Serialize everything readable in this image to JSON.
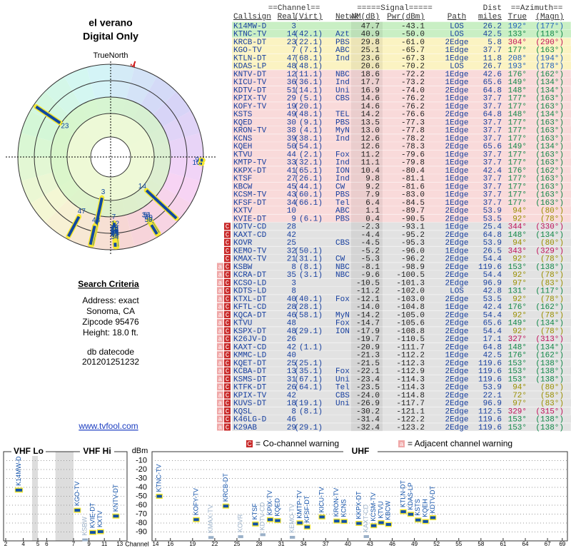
{
  "header": {
    "title": "el verano",
    "subtitle": "Digital Only"
  },
  "polar": {
    "true_north": "TrueNorth",
    "magnetic_north": "N"
  },
  "search": {
    "title": "Search Criteria",
    "lines": [
      "Address: exact",
      "Sonoma, CA",
      "Zipcode 95476",
      "Height: 18.0 ft."
    ]
  },
  "datecode": {
    "label": "db datecode",
    "value": "201201251232"
  },
  "link": "www.tvfool.com",
  "table": {
    "group_headers": [
      "==Channel==",
      "=====Signal=====",
      "Dist",
      "==Azimuth=="
    ],
    "columns": [
      "Callsign",
      "Real",
      "(Virt)",
      "Netwk",
      "NM(dB)",
      "Pwr(dBm)",
      "Path",
      "miles",
      "True",
      "(Magn)"
    ],
    "rows": [
      {
        "callsign": "K14MW-D",
        "real": 3,
        "nm": "47.7",
        "pwr": "-43.1",
        "path": "LOS",
        "dist": "26.2",
        "true": "192°",
        "magn": "(177°)"
      },
      {
        "callsign": "KTNC-TV",
        "real": 14,
        "virt": "(42.1)",
        "netwk": "Azt",
        "nm": "40.9",
        "pwr": "-50.0",
        "path": "LOS",
        "dist": "42.5",
        "true": "133°",
        "magn": "(118°)"
      },
      {
        "callsign": "KRCB-DT",
        "real": 23,
        "virt": "(22.1)",
        "netwk": "PBS",
        "nm": "29.8",
        "pwr": "-61.0",
        "path": "2Edge",
        "dist": "5.8",
        "true": "304°",
        "magn": "(290°)"
      },
      {
        "callsign": "KGO-TV",
        "real": 7,
        "virt": "(7.1)",
        "netwk": "ABC",
        "nm": "25.1",
        "pwr": "-65.7",
        "path": "1Edge",
        "dist": "37.7",
        "true": "177°",
        "magn": "(163°)"
      },
      {
        "callsign": "KTLN-DT",
        "real": 47,
        "virt": "(68.1)",
        "netwk": "Ind",
        "nm": "23.6",
        "pwr": "-67.3",
        "path": "1Edge",
        "dist": "11.8",
        "true": "208°",
        "magn": "(194°)"
      },
      {
        "callsign": "KDAS-LP",
        "real": 48,
        "virt": "(48.1)",
        "nm": "20.6",
        "pwr": "-70.2",
        "path": "LOS",
        "dist": "26.7",
        "true": "193°",
        "magn": "(178°)"
      },
      {
        "callsign": "KNTV-DT",
        "real": 12,
        "virt": "(11.1)",
        "netwk": "NBC",
        "nm": "18.6",
        "pwr": "-72.2",
        "path": "1Edge",
        "dist": "42.6",
        "true": "176°",
        "magn": "(162°)"
      },
      {
        "callsign": "KICU-TV",
        "real": 36,
        "virt": "(36.1)",
        "netwk": "Ind",
        "nm": "17.7",
        "pwr": "-73.2",
        "path": "1Edge",
        "dist": "65.6",
        "true": "149°",
        "magn": "(134°)"
      },
      {
        "callsign": "KDTV-DT",
        "real": 51,
        "virt": "(14.1)",
        "netwk": "Uni",
        "nm": "16.9",
        "pwr": "-74.0",
        "path": "2Edge",
        "dist": "64.8",
        "true": "148°",
        "magn": "(134°)"
      },
      {
        "callsign": "KPIX-TV",
        "real": 29,
        "virt": "(5.1)",
        "netwk": "CBS",
        "nm": "14.6",
        "pwr": "-76.2",
        "path": "1Edge",
        "dist": "37.7",
        "true": "177°",
        "magn": "(163°)"
      },
      {
        "callsign": "KOFY-TV",
        "real": 19,
        "virt": "(20.1)",
        "nm": "14.6",
        "pwr": "-76.2",
        "path": "1Edge",
        "dist": "37.7",
        "true": "177°",
        "magn": "(163°)"
      },
      {
        "callsign": "KSTS",
        "real": 49,
        "virt": "(48.1)",
        "netwk": "TEL",
        "nm": "14.2",
        "pwr": "-76.6",
        "path": "2Edge",
        "dist": "64.8",
        "true": "148°",
        "magn": "(134°)"
      },
      {
        "callsign": "KQED",
        "real": 30,
        "virt": "(9.1)",
        "netwk": "PBS",
        "nm": "13.5",
        "pwr": "-77.3",
        "path": "1Edge",
        "dist": "37.7",
        "true": "177°",
        "magn": "(163°)"
      },
      {
        "callsign": "KRON-TV",
        "real": 38,
        "virt": "(4.1)",
        "netwk": "MyN",
        "nm": "13.0",
        "pwr": "-77.8",
        "path": "1Edge",
        "dist": "37.7",
        "true": "177°",
        "magn": "(163°)"
      },
      {
        "callsign": "KCNS",
        "real": 39,
        "virt": "(38.1)",
        "netwk": "Ind",
        "nm": "12.6",
        "pwr": "-78.2",
        "path": "1Edge",
        "dist": "37.7",
        "true": "177°",
        "magn": "(163°)"
      },
      {
        "callsign": "KQEH",
        "real": 50,
        "virt": "(54.1)",
        "nm": "12.6",
        "pwr": "-78.3",
        "path": "2Edge",
        "dist": "65.6",
        "true": "149°",
        "magn": "(134°)"
      },
      {
        "callsign": "KTVU",
        "real": 44,
        "virt": "(2.1)",
        "netwk": "Fox",
        "nm": "11.2",
        "pwr": "-79.6",
        "path": "1Edge",
        "dist": "37.7",
        "true": "177°",
        "magn": "(163°)"
      },
      {
        "callsign": "KMTP-TV",
        "real": 33,
        "virt": "(32.1)",
        "netwk": "Ind",
        "nm": "11.1",
        "pwr": "-79.8",
        "path": "1Edge",
        "dist": "37.7",
        "true": "177°",
        "magn": "(163°)"
      },
      {
        "callsign": "KKPX-DT",
        "real": 41,
        "virt": "(65.1)",
        "netwk": "ION",
        "nm": "10.4",
        "pwr": "-80.4",
        "path": "1Edge",
        "dist": "42.4",
        "true": "176°",
        "magn": "(162°)"
      },
      {
        "callsign": "KTSF",
        "real": 27,
        "virt": "(26.1)",
        "netwk": "Ind",
        "nm": "9.8",
        "pwr": "-81.1",
        "path": "1Edge",
        "dist": "37.7",
        "true": "177°",
        "magn": "(163°)"
      },
      {
        "callsign": "KBCW",
        "real": 45,
        "virt": "(44.1)",
        "netwk": "CW",
        "nm": "9.2",
        "pwr": "-81.6",
        "path": "1Edge",
        "dist": "37.7",
        "true": "177°",
        "magn": "(163°)"
      },
      {
        "callsign": "KCSM-TV",
        "real": 43,
        "virt": "(60.1)",
        "netwk": "PBS",
        "nm": "7.9",
        "pwr": "-83.0",
        "path": "1Edge",
        "dist": "37.7",
        "true": "177°",
        "magn": "(163°)"
      },
      {
        "callsign": "KFSF-DT",
        "real": 34,
        "virt": "(66.1)",
        "netwk": "Tel",
        "nm": "6.4",
        "pwr": "-84.5",
        "path": "1Edge",
        "dist": "37.7",
        "true": "177°",
        "magn": "(163°)"
      },
      {
        "callsign": "KXTV",
        "real": 10,
        "netwk": "ABC",
        "nm": "1.1",
        "pwr": "-89.7",
        "path": "2Edge",
        "dist": "53.9",
        "true": "94°",
        "magn": "(80°)"
      },
      {
        "callsign": "KVIE-DT",
        "real": 9,
        "virt": "(6.1)",
        "netwk": "PBS",
        "nm": "0.4",
        "pwr": "-90.5",
        "path": "2Edge",
        "dist": "53.5",
        "true": "92°",
        "magn": "(78°)"
      },
      {
        "callsign": "KDTV-CD",
        "real": 28,
        "nm": "-2.3",
        "pwr": "-93.1",
        "path": "1Edge",
        "dist": "25.4",
        "true": "344°",
        "magn": "(330°)",
        "warn": [
          "C"
        ]
      },
      {
        "callsign": "KAXT-CD",
        "real": 42,
        "nm": "-4.4",
        "pwr": "-95.2",
        "path": "2Edge",
        "dist": "64.8",
        "true": "148°",
        "magn": "(134°)",
        "warn": [
          "C"
        ]
      },
      {
        "callsign": "KOVR",
        "real": 25,
        "netwk": "CBS",
        "nm": "-4.5",
        "pwr": "-95.3",
        "path": "2Edge",
        "dist": "53.9",
        "true": "94°",
        "magn": "(80°)",
        "warn": [
          "C"
        ]
      },
      {
        "callsign": "KEMO-TV",
        "real": 32,
        "virt": "(50.1)",
        "nm": "-5.2",
        "pwr": "-96.0",
        "path": "1Edge",
        "dist": "26.5",
        "true": "343°",
        "magn": "(329°)",
        "warn": [
          "C"
        ]
      },
      {
        "callsign": "KMAX-TV",
        "real": 21,
        "virt": "(31.1)",
        "netwk": "CW",
        "nm": "-5.3",
        "pwr": "-96.2",
        "path": "2Edge",
        "dist": "54.4",
        "true": "92°",
        "magn": "(78°)",
        "warn": [
          "C"
        ]
      },
      {
        "callsign": "KSBW",
        "real": 8,
        "virt": "(8.1)",
        "netwk": "NBC",
        "nm": "-8.1",
        "pwr": "-98.9",
        "path": "2Edge",
        "dist": "119.6",
        "true": "153°",
        "magn": "(138°)",
        "warn": [
          "a",
          "C"
        ]
      },
      {
        "callsign": "KCRA-DT",
        "real": 35,
        "virt": "(3.1)",
        "netwk": "NBC",
        "nm": "-9.6",
        "pwr": "-100.5",
        "path": "2Edge",
        "dist": "54.4",
        "true": "92°",
        "magn": "(78°)",
        "warn": [
          "a",
          "C"
        ]
      },
      {
        "callsign": "KCSO-LD",
        "real": 3,
        "nm": "-10.5",
        "pwr": "-101.3",
        "path": "2Edge",
        "dist": "96.9",
        "true": "97°",
        "magn": "(83°)",
        "warn": [
          "a",
          "C"
        ]
      },
      {
        "callsign": "KDTS-LD",
        "real": 8,
        "nm": "-11.2",
        "pwr": "-102.0",
        "path": "LOS",
        "dist": "42.8",
        "true": "131°",
        "magn": "(117°)",
        "warn": [
          "a",
          "C"
        ]
      },
      {
        "callsign": "KTXL-DT",
        "real": 40,
        "virt": "(40.1)",
        "netwk": "Fox",
        "nm": "-12.1",
        "pwr": "-103.0",
        "path": "2Edge",
        "dist": "53.5",
        "true": "92°",
        "magn": "(78°)",
        "warn": [
          "a",
          "C"
        ]
      },
      {
        "callsign": "KFTL-CD",
        "real": 28,
        "virt": "(28.1)",
        "nm": "-14.0",
        "pwr": "-104.8",
        "path": "1Edge",
        "dist": "42.4",
        "true": "176°",
        "magn": "(162°)",
        "warn": [
          "a",
          "C"
        ]
      },
      {
        "callsign": "KQCA-DT",
        "real": 46,
        "virt": "(58.1)",
        "netwk": "MyN",
        "nm": "-14.2",
        "pwr": "-105.0",
        "path": "2Edge",
        "dist": "54.4",
        "true": "92°",
        "magn": "(78°)",
        "warn": [
          "a",
          "C"
        ]
      },
      {
        "callsign": "KTVU",
        "real": 48,
        "netwk": "Fox",
        "nm": "-14.7",
        "pwr": "-105.6",
        "path": "2Edge",
        "dist": "65.6",
        "true": "149°",
        "magn": "(134°)",
        "warn": [
          "a",
          "C"
        ]
      },
      {
        "callsign": "KSPX-DT",
        "real": 48,
        "virt": "(29.1)",
        "netwk": "ION",
        "nm": "-17.9",
        "pwr": "-108.8",
        "path": "2Edge",
        "dist": "54.4",
        "true": "92°",
        "magn": "(78°)",
        "warn": [
          "a",
          "C"
        ]
      },
      {
        "callsign": "K26JV-D",
        "real": 26,
        "nm": "-19.7",
        "pwr": "-110.5",
        "path": "2Edge",
        "dist": "17.1",
        "true": "327°",
        "magn": "(313°)",
        "warn": [
          "a",
          "C"
        ]
      },
      {
        "callsign": "KAXT-CD",
        "real": 42,
        "virt": "(1.1)",
        "nm": "-20.9",
        "pwr": "-111.7",
        "path": "2Edge",
        "dist": "64.8",
        "true": "148°",
        "magn": "(134°)",
        "warn": [
          "a",
          "C"
        ]
      },
      {
        "callsign": "KMMC-LD",
        "real": 40,
        "nm": "-21.3",
        "pwr": "-112.2",
        "path": "1Edge",
        "dist": "42.5",
        "true": "176°",
        "magn": "(162°)",
        "warn": [
          "a",
          "C"
        ]
      },
      {
        "callsign": "KQET-DT",
        "real": 25,
        "virt": "(25.1)",
        "nm": "-21.5",
        "pwr": "-112.3",
        "path": "2Edge",
        "dist": "119.6",
        "true": "153°",
        "magn": "(138°)",
        "warn": [
          "a",
          "C"
        ]
      },
      {
        "callsign": "KCBA-DT",
        "real": 13,
        "virt": "(35.1)",
        "netwk": "Fox",
        "nm": "-22.1",
        "pwr": "-112.9",
        "path": "2Edge",
        "dist": "119.6",
        "true": "153°",
        "magn": "(138°)",
        "warn": [
          "a",
          "C"
        ]
      },
      {
        "callsign": "KSMS-DT",
        "real": 31,
        "virt": "(67.1)",
        "netwk": "Uni",
        "nm": "-23.4",
        "pwr": "-114.3",
        "path": "2Edge",
        "dist": "119.6",
        "true": "153°",
        "magn": "(138°)",
        "warn": [
          "a",
          "C"
        ]
      },
      {
        "callsign": "KTFK-DT",
        "real": 26,
        "virt": "(64.1)",
        "netwk": "Tel",
        "nm": "-23.5",
        "pwr": "-114.3",
        "path": "2Edge",
        "dist": "53.9",
        "true": "94°",
        "magn": "(80°)",
        "warn": [
          "a",
          "C"
        ]
      },
      {
        "callsign": "KPIX-TV",
        "real": 42,
        "netwk": "CBS",
        "nm": "-24.0",
        "pwr": "-114.8",
        "path": "2Edge",
        "dist": "22.1",
        "true": "72°",
        "magn": "(58°)",
        "warn": [
          "a",
          "C"
        ]
      },
      {
        "callsign": "KUVS-DT",
        "real": 18,
        "virt": "(19.1)",
        "netwk": "Uni",
        "nm": "-26.9",
        "pwr": "-117.7",
        "path": "2Edge",
        "dist": "96.9",
        "true": "97°",
        "magn": "(83°)",
        "warn": [
          "a",
          "C"
        ]
      },
      {
        "callsign": "KQSL",
        "real": 8,
        "virt": "(8.1)",
        "nm": "-30.2",
        "pwr": "-121.1",
        "path": "2Edge",
        "dist": "112.5",
        "true": "329°",
        "magn": "(315°)",
        "warn": [
          "a",
          "C"
        ]
      },
      {
        "callsign": "K46LG-D",
        "real": 46,
        "nm": "-31.4",
        "pwr": "-122.2",
        "path": "2Edge",
        "dist": "119.6",
        "true": "153°",
        "magn": "(138°)",
        "warn": [
          "a",
          "C"
        ]
      },
      {
        "callsign": "K29AB",
        "real": 29,
        "virt": "(29.1)",
        "nm": "-32.4",
        "pwr": "-123.2",
        "path": "2Edge",
        "dist": "119.6",
        "true": "153°",
        "magn": "(138°)",
        "warn": [
          "a",
          "C"
        ]
      }
    ]
  },
  "legend": {
    "co": {
      "key": "C",
      "text": "= Co-channel warning"
    },
    "adj": {
      "key": "a",
      "text": "= Adjacent channel warning"
    }
  },
  "spectrum": {
    "y_label": "dBm",
    "ylim": [
      -100,
      0
    ],
    "yticks": [
      -10,
      -20,
      -30,
      -40,
      -50,
      -60,
      -70,
      -80,
      -90
    ],
    "x_label": "Channel",
    "vhf_lo": "VHF Lo",
    "vhf_hi": "VHF Hi",
    "uhf": "UHF",
    "vhf_ticks": [
      2,
      4,
      5,
      6,
      7,
      9,
      11,
      13
    ],
    "uhf_ticks": [
      14,
      16,
      19,
      22,
      25,
      28,
      31,
      34,
      37,
      40,
      43,
      46,
      49,
      52,
      55,
      58,
      61,
      64,
      67,
      69
    ]
  }
}
